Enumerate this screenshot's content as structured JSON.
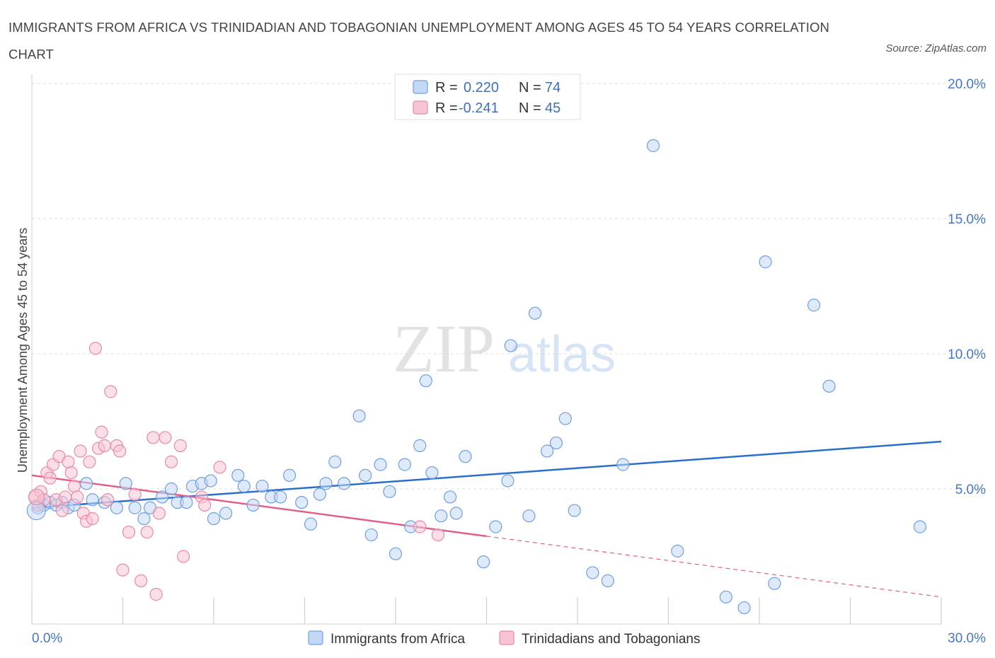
{
  "title": "IMMIGRANTS FROM AFRICA VS TRINIDADIAN AND TOBAGONIAN UNEMPLOYMENT AMONG AGES 45 TO 54 YEARS CORRELATION CHART",
  "source": "Source: ZipAtlas.com",
  "watermark": {
    "zip": "ZIP",
    "atlas": "atlas"
  },
  "legend": {
    "rows": [
      {
        "r_label": "R =",
        "r_value": "0.220",
        "n_label": "N =",
        "n_value": "74",
        "color": "#aac7f2"
      },
      {
        "r_label": "R =",
        "r_value": "-0.241",
        "n_label": "N =",
        "n_value": "45",
        "color": "#f7b8cc"
      }
    ]
  },
  "bottom_legend": [
    "Immigrants from Africa",
    "Trinidadians and Tobagonians"
  ],
  "chart_data": {
    "type": "scatter",
    "xlabel": "",
    "ylabel": "Unemployment Among Ages 45 to 54 years",
    "xlim": [
      0,
      30
    ],
    "ylim": [
      0,
      20
    ],
    "x_tick_labels": [
      "0.0%",
      "30.0%"
    ],
    "y_ticks": [
      5,
      10,
      15,
      20
    ],
    "y_tick_labels": [
      "5.0%",
      "10.0%",
      "15.0%",
      "20.0%"
    ],
    "grid": true,
    "legend_position": "top-center",
    "series": [
      {
        "name": "Immigrants from Africa",
        "color": "#6f9fe0",
        "fill": "#c3d8f5",
        "trend": {
          "x": [
            0,
            30
          ],
          "y": [
            4.3,
            6.75
          ]
        },
        "points": [
          [
            0.2,
            4.3
          ],
          [
            0.4,
            4.4
          ],
          [
            0.6,
            4.5
          ],
          [
            0.8,
            4.4
          ],
          [
            1.0,
            4.5
          ],
          [
            1.2,
            4.3
          ],
          [
            1.4,
            4.4
          ],
          [
            1.8,
            5.2
          ],
          [
            2.0,
            4.6
          ],
          [
            2.4,
            4.5
          ],
          [
            2.8,
            4.3
          ],
          [
            3.1,
            5.2
          ],
          [
            3.4,
            4.3
          ],
          [
            3.7,
            3.9
          ],
          [
            3.9,
            4.3
          ],
          [
            4.3,
            4.7
          ],
          [
            4.6,
            5.0
          ],
          [
            4.8,
            4.5
          ],
          [
            5.1,
            4.5
          ],
          [
            5.3,
            5.1
          ],
          [
            5.6,
            5.2
          ],
          [
            5.9,
            5.3
          ],
          [
            6.0,
            3.9
          ],
          [
            6.4,
            4.1
          ],
          [
            6.8,
            5.5
          ],
          [
            7.0,
            5.1
          ],
          [
            7.3,
            4.4
          ],
          [
            7.6,
            5.1
          ],
          [
            7.9,
            4.7
          ],
          [
            8.2,
            4.7
          ],
          [
            8.5,
            5.5
          ],
          [
            8.9,
            4.5
          ],
          [
            9.2,
            3.7
          ],
          [
            9.5,
            4.8
          ],
          [
            9.7,
            5.2
          ],
          [
            10.0,
            6.0
          ],
          [
            10.3,
            5.2
          ],
          [
            10.8,
            7.7
          ],
          [
            11.0,
            5.5
          ],
          [
            11.2,
            3.3
          ],
          [
            11.5,
            5.9
          ],
          [
            11.8,
            4.9
          ],
          [
            12.0,
            2.6
          ],
          [
            12.3,
            5.9
          ],
          [
            12.5,
            3.6
          ],
          [
            12.8,
            6.6
          ],
          [
            13.0,
            9.0
          ],
          [
            13.2,
            5.6
          ],
          [
            13.5,
            4.0
          ],
          [
            13.8,
            4.7
          ],
          [
            14.0,
            4.1
          ],
          [
            14.3,
            6.2
          ],
          [
            14.9,
            2.3
          ],
          [
            15.3,
            3.6
          ],
          [
            15.7,
            5.3
          ],
          [
            15.8,
            10.3
          ],
          [
            16.4,
            4.0
          ],
          [
            16.6,
            11.5
          ],
          [
            17.0,
            6.4
          ],
          [
            17.3,
            6.7
          ],
          [
            17.6,
            7.6
          ],
          [
            17.9,
            4.2
          ],
          [
            18.5,
            1.9
          ],
          [
            19.0,
            1.6
          ],
          [
            19.5,
            5.9
          ],
          [
            20.5,
            17.7
          ],
          [
            21.3,
            2.7
          ],
          [
            22.9,
            1.0
          ],
          [
            23.5,
            0.6
          ],
          [
            24.2,
            13.4
          ],
          [
            24.5,
            1.5
          ],
          [
            25.8,
            11.8
          ],
          [
            26.3,
            8.8
          ],
          [
            29.3,
            3.6
          ]
        ]
      },
      {
        "name": "Trinidadians and Tobagonians",
        "color": "#e889a8",
        "fill": "#f7c4d4",
        "trend": {
          "x": [
            0,
            15
          ],
          "y": [
            5.5,
            3.25
          ]
        },
        "trend_dashed": {
          "x": [
            15,
            30
          ],
          "y": [
            3.25,
            1.0
          ]
        },
        "points": [
          [
            0.1,
            4.7
          ],
          [
            0.2,
            4.4
          ],
          [
            0.3,
            4.9
          ],
          [
            0.4,
            4.6
          ],
          [
            0.5,
            5.6
          ],
          [
            0.6,
            5.4
          ],
          [
            0.7,
            5.9
          ],
          [
            0.8,
            4.6
          ],
          [
            0.9,
            6.2
          ],
          [
            1.0,
            4.2
          ],
          [
            1.1,
            4.7
          ],
          [
            1.2,
            6.0
          ],
          [
            1.3,
            5.6
          ],
          [
            1.4,
            5.1
          ],
          [
            1.5,
            4.7
          ],
          [
            1.6,
            6.4
          ],
          [
            1.7,
            4.1
          ],
          [
            1.8,
            3.8
          ],
          [
            1.9,
            6.0
          ],
          [
            2.0,
            3.9
          ],
          [
            2.1,
            10.2
          ],
          [
            2.2,
            6.5
          ],
          [
            2.3,
            7.1
          ],
          [
            2.4,
            6.6
          ],
          [
            2.5,
            4.6
          ],
          [
            2.6,
            8.6
          ],
          [
            2.8,
            6.6
          ],
          [
            2.9,
            6.4
          ],
          [
            3.0,
            2.0
          ],
          [
            3.2,
            3.4
          ],
          [
            3.4,
            4.8
          ],
          [
            3.6,
            1.6
          ],
          [
            3.8,
            3.4
          ],
          [
            4.0,
            6.9
          ],
          [
            4.1,
            1.1
          ],
          [
            4.2,
            4.1
          ],
          [
            4.4,
            6.9
          ],
          [
            4.6,
            6.0
          ],
          [
            4.9,
            6.6
          ],
          [
            5.0,
            2.5
          ],
          [
            5.6,
            4.7
          ],
          [
            5.7,
            4.4
          ],
          [
            6.2,
            5.8
          ],
          [
            12.8,
            3.6
          ],
          [
            13.4,
            3.3
          ]
        ]
      }
    ]
  }
}
